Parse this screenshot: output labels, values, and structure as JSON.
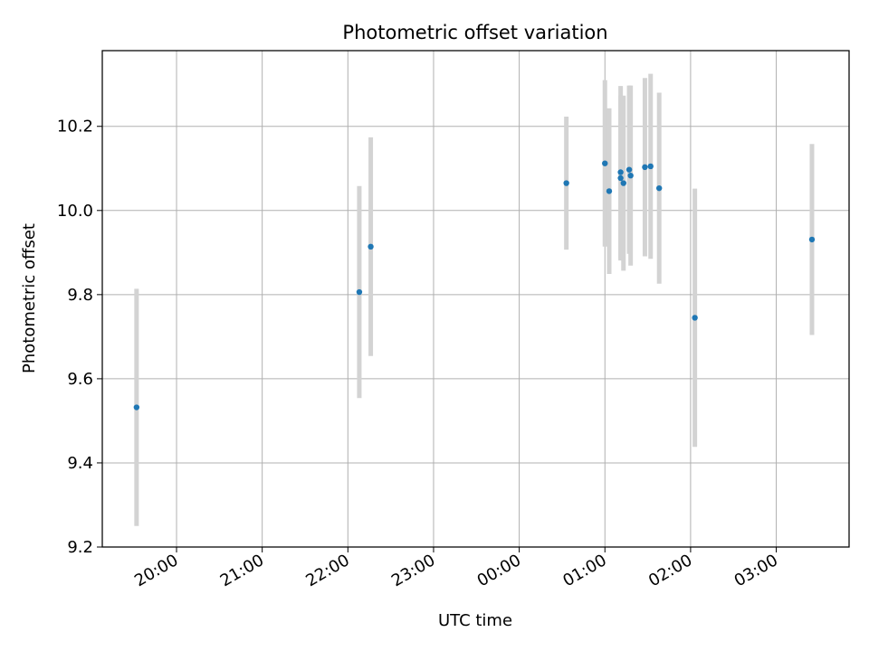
{
  "chart_data": {
    "type": "scatter",
    "title": "Photometric offset variation",
    "xlabel": "UTC time",
    "ylabel": "Photometric offset",
    "x_axis": {
      "kind": "time",
      "range": [
        "19:08",
        "03:51"
      ],
      "ticks": [
        "20:00",
        "21:00",
        "22:00",
        "23:00",
        "00:00",
        "01:00",
        "02:00",
        "03:00"
      ]
    },
    "y_axis": {
      "range": [
        9.2,
        10.38
      ],
      "ticks": [
        "9.2",
        "9.4",
        "9.6",
        "9.8",
        "10.0",
        "10.2"
      ]
    },
    "grid": true,
    "colors": {
      "point": "#1f77b4",
      "errorbar": "#d3d3d3",
      "grid": "#b0b0b0"
    },
    "series": [
      {
        "points": [
          {
            "x": "19:32",
            "y": 9.532,
            "err": 0.282
          },
          {
            "x": "22:08",
            "y": 9.806,
            "err": 0.252
          },
          {
            "x": "22:16",
            "y": 9.914,
            "err": 0.26
          },
          {
            "x": "00:33",
            "y": 10.065,
            "err": 0.158
          },
          {
            "x": "01:00",
            "y": 10.112,
            "err": 0.198
          },
          {
            "x": "01:03",
            "y": 10.046,
            "err": 0.197
          },
          {
            "x": "01:11",
            "y": 10.091,
            "err": 0.205
          },
          {
            "x": "01:11",
            "y": 10.077,
            "err": 0.196
          },
          {
            "x": "01:13",
            "y": 10.065,
            "err": 0.208
          },
          {
            "x": "01:17",
            "y": 10.097,
            "err": 0.2
          },
          {
            "x": "01:18",
            "y": 10.083,
            "err": 0.214
          },
          {
            "x": "01:28",
            "y": 10.103,
            "err": 0.212
          },
          {
            "x": "01:32",
            "y": 10.105,
            "err": 0.22
          },
          {
            "x": "01:38",
            "y": 10.053,
            "err": 0.227
          },
          {
            "x": "02:03",
            "y": 9.745,
            "err": 0.307
          },
          {
            "x": "03:25",
            "y": 9.931,
            "err": 0.227
          }
        ]
      }
    ]
  }
}
